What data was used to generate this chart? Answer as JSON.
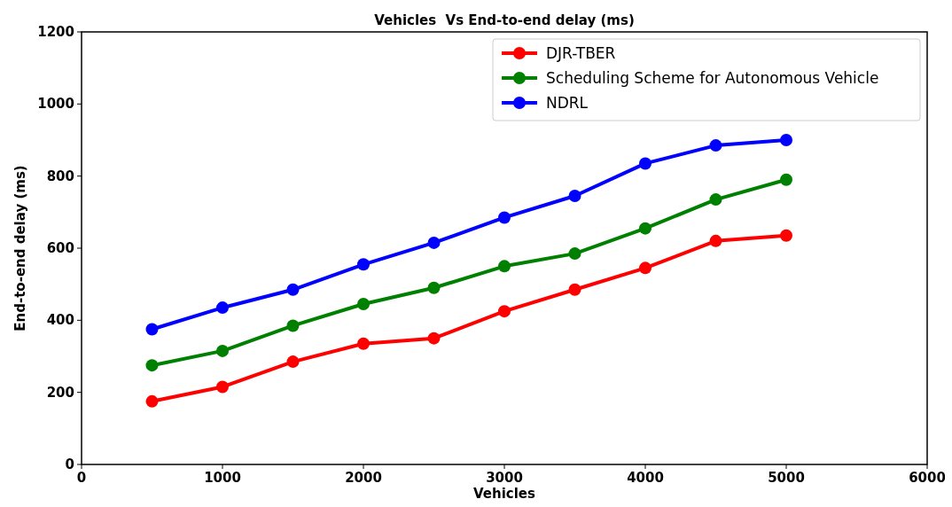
{
  "chart_data": {
    "type": "line",
    "title": "Vehicles  Vs End-to-end delay (ms)",
    "xlabel": "Vehicles",
    "ylabel": "End-to-end delay (ms)",
    "x": [
      500,
      1000,
      1500,
      2000,
      2500,
      3000,
      3500,
      4000,
      4500,
      5000
    ],
    "series": [
      {
        "name": "DJR-TBER",
        "color": "#ff0000",
        "values": [
          175,
          215,
          285,
          335,
          350,
          425,
          485,
          545,
          620,
          635
        ]
      },
      {
        "name": "Scheduling Scheme for Autonomous Vehicle",
        "color": "#008000",
        "values": [
          275,
          315,
          385,
          445,
          490,
          550,
          585,
          655,
          735,
          790
        ]
      },
      {
        "name": "NDRL",
        "color": "#0000ff",
        "values": [
          375,
          435,
          485,
          555,
          615,
          685,
          745,
          835,
          885,
          900
        ]
      }
    ],
    "xlim": [
      0,
      6000
    ],
    "xticks": [
      0,
      1000,
      2000,
      3000,
      4000,
      5000,
      6000
    ],
    "ylim": [
      0,
      1200
    ],
    "yticks": [
      0,
      200,
      400,
      600,
      800,
      1000,
      1200
    ],
    "grid": false,
    "legend": "top right",
    "marker": "circle",
    "line_style": "solid"
  }
}
